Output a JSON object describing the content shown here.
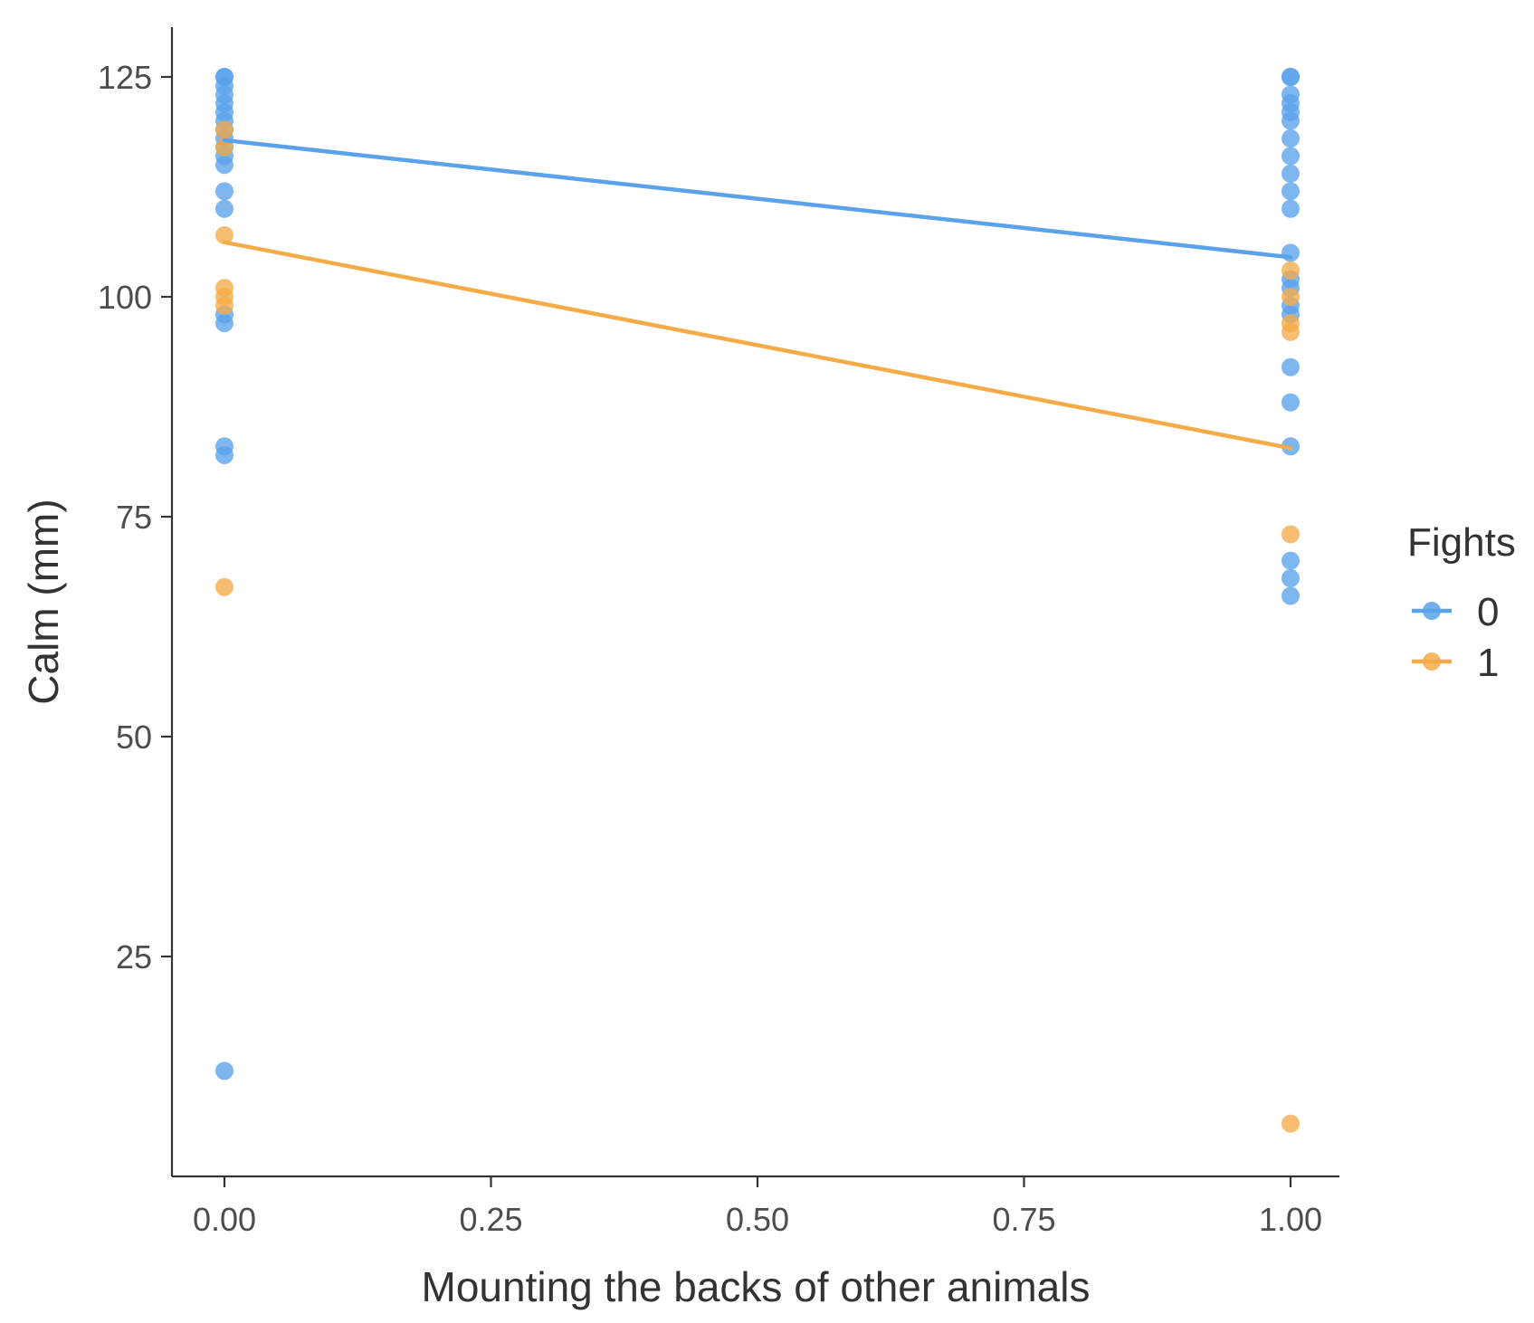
{
  "chart_data": {
    "type": "scatter",
    "title": "",
    "xlabel": "Mounting the backs of other animals",
    "ylabel": "Calm (mm)",
    "xlim": [
      -0.05,
      1.05
    ],
    "ylim": [
      2,
      130
    ],
    "x_ticks": [
      0,
      0.25,
      0.5,
      0.75,
      1
    ],
    "x_tick_labels": [
      "0.00",
      "0.25",
      "0.50",
      "0.75",
      "1.00"
    ],
    "y_ticks": [
      25,
      50,
      75,
      100,
      125
    ],
    "y_tick_labels": [
      "25",
      "50",
      "75",
      "100",
      "125"
    ],
    "grid": false,
    "legend": {
      "title": "Fights",
      "placement": "right"
    },
    "series": [
      {
        "name": "0",
        "color": "#5aa2ea",
        "points": [
          {
            "x": 0,
            "y": 125
          },
          {
            "x": 0,
            "y": 125
          },
          {
            "x": 0,
            "y": 124
          },
          {
            "x": 0,
            "y": 123
          },
          {
            "x": 0,
            "y": 122
          },
          {
            "x": 0,
            "y": 121
          },
          {
            "x": 0,
            "y": 120
          },
          {
            "x": 0,
            "y": 119
          },
          {
            "x": 0,
            "y": 118
          },
          {
            "x": 0,
            "y": 117
          },
          {
            "x": 0,
            "y": 116
          },
          {
            "x": 0,
            "y": 115
          },
          {
            "x": 0,
            "y": 112
          },
          {
            "x": 0,
            "y": 110
          },
          {
            "x": 0,
            "y": 98
          },
          {
            "x": 0,
            "y": 97
          },
          {
            "x": 0,
            "y": 83
          },
          {
            "x": 0,
            "y": 82
          },
          {
            "x": 0,
            "y": 12
          },
          {
            "x": 1,
            "y": 125
          },
          {
            "x": 1,
            "y": 125
          },
          {
            "x": 1,
            "y": 123
          },
          {
            "x": 1,
            "y": 122
          },
          {
            "x": 1,
            "y": 121
          },
          {
            "x": 1,
            "y": 120
          },
          {
            "x": 1,
            "y": 118
          },
          {
            "x": 1,
            "y": 116
          },
          {
            "x": 1,
            "y": 114
          },
          {
            "x": 1,
            "y": 112
          },
          {
            "x": 1,
            "y": 110
          },
          {
            "x": 1,
            "y": 105
          },
          {
            "x": 1,
            "y": 102
          },
          {
            "x": 1,
            "y": 101
          },
          {
            "x": 1,
            "y": 99
          },
          {
            "x": 1,
            "y": 98
          },
          {
            "x": 1,
            "y": 92
          },
          {
            "x": 1,
            "y": 88
          },
          {
            "x": 1,
            "y": 83
          },
          {
            "x": 1,
            "y": 70
          },
          {
            "x": 1,
            "y": 68
          },
          {
            "x": 1,
            "y": 66
          }
        ],
        "fit_line": {
          "x": [
            0,
            1
          ],
          "y": [
            117.8,
            104.5
          ]
        }
      },
      {
        "name": "1",
        "color": "#f5ab48",
        "points": [
          {
            "x": 0,
            "y": 119
          },
          {
            "x": 0,
            "y": 117
          },
          {
            "x": 0,
            "y": 107
          },
          {
            "x": 0,
            "y": 101
          },
          {
            "x": 0,
            "y": 100
          },
          {
            "x": 0,
            "y": 99
          },
          {
            "x": 0,
            "y": 67
          },
          {
            "x": 1,
            "y": 103
          },
          {
            "x": 1,
            "y": 100
          },
          {
            "x": 1,
            "y": 97
          },
          {
            "x": 1,
            "y": 96
          },
          {
            "x": 1,
            "y": 73
          },
          {
            "x": 1,
            "y": 6
          }
        ],
        "fit_line": {
          "x": [
            0,
            1
          ],
          "y": [
            106.2,
            82.8
          ]
        }
      }
    ]
  }
}
